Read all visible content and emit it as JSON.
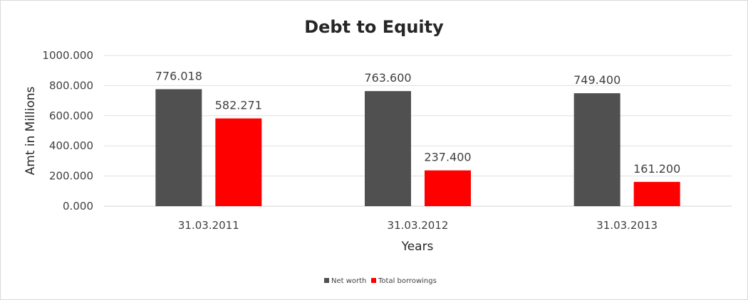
{
  "chart_data": {
    "type": "bar",
    "title": "Debt to Equity",
    "xlabel": "Years",
    "ylabel": "Amt in Millions",
    "categories": [
      "31.03.2011",
      "31.03.2012",
      "31.03.2013"
    ],
    "series": [
      {
        "name": "Net worth",
        "values": [
          776.018,
          763.6,
          749.4
        ],
        "color": "#505050"
      },
      {
        "name": "Total borrowings",
        "values": [
          582.271,
          237.4,
          161.2
        ],
        "color": "#ff0000"
      }
    ],
    "data_labels": [
      [
        "776.018",
        "763.600",
        "749.400"
      ],
      [
        "582.271",
        "237.400",
        "161.200"
      ]
    ],
    "ylim": [
      0,
      1000
    ],
    "yticks": [
      0,
      200,
      400,
      600,
      800,
      1000
    ],
    "ytick_labels": [
      "0.000",
      "200.000",
      "400.000",
      "600.000",
      "800.000",
      "1000.000"
    ],
    "grid": true,
    "legend_position": "bottom"
  }
}
